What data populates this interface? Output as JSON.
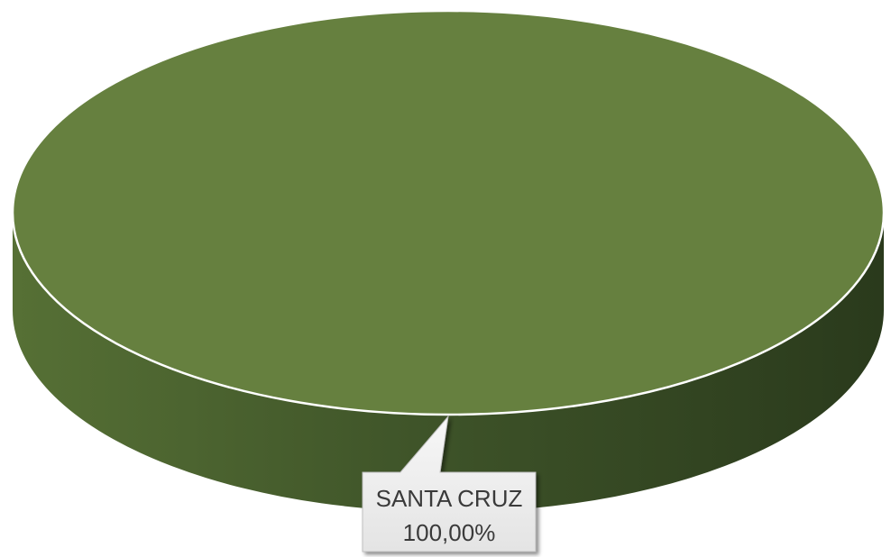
{
  "chart_data": {
    "type": "pie",
    "style": "3d",
    "title": "",
    "categories": [
      "SANTA CRUZ"
    ],
    "values": [
      100
    ],
    "data_labels": [
      {
        "name": "SANTA CRUZ",
        "value": "100,00%"
      }
    ],
    "legend": "none",
    "colors": {
      "slice_top": "#66803f",
      "slice_side_light": "#567035",
      "slice_side_dark": "#2a3a1c",
      "edge": "#ffffff",
      "callout_fill": "#f2f2f2"
    }
  }
}
